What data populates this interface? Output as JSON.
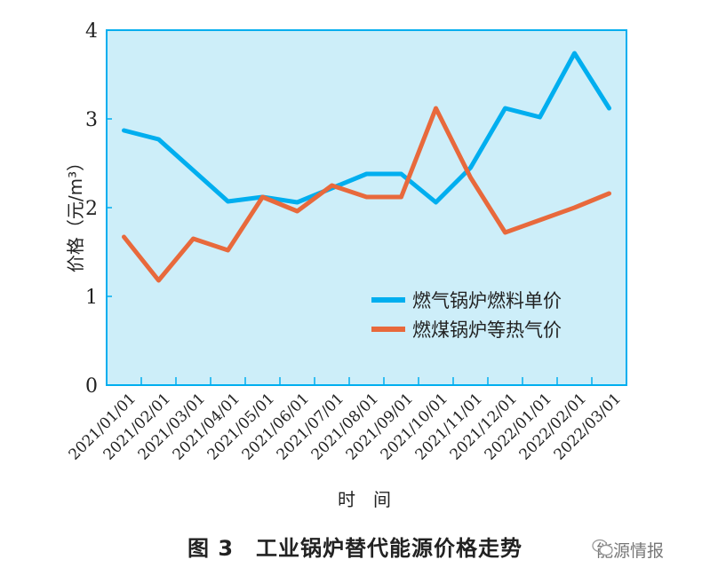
{
  "chart_data": {
    "type": "line",
    "title": "图 3　工业锅炉替代能源价格走势",
    "xlabel": "时　间",
    "ylabel": "价格（元/m³）",
    "ylim": [
      0,
      4
    ],
    "yticks": [
      "0",
      "1",
      "2",
      "3",
      "4"
    ],
    "categories": [
      "2021/01/01",
      "2021/02/01",
      "2021/03/01",
      "2021/04/01",
      "2021/05/01",
      "2021/06/01",
      "2021/07/01",
      "2021/08/01",
      "2021/09/01",
      "2021/10/01",
      "2021/11/01",
      "2021/12/01",
      "2022/01/01",
      "2022/02/01",
      "2022/03/01"
    ],
    "legend_position": "right",
    "grid": false,
    "series": [
      {
        "name": "燃气锅炉燃料单价",
        "color": "#00aeef",
        "values": [
          2.87,
          2.77,
          2.42,
          2.07,
          2.12,
          2.06,
          2.22,
          2.38,
          2.38,
          2.06,
          2.45,
          3.12,
          3.02,
          3.74,
          3.12
        ]
      },
      {
        "name": "燃煤锅炉等热气价",
        "color": "#e8693c",
        "values": [
          1.67,
          1.18,
          1.65,
          1.52,
          2.12,
          1.96,
          2.25,
          2.12,
          2.12,
          3.12,
          2.34,
          1.72,
          1.86,
          2.0,
          2.16
        ]
      }
    ],
    "background": "#cdeef9"
  },
  "watermark": "能源情报"
}
